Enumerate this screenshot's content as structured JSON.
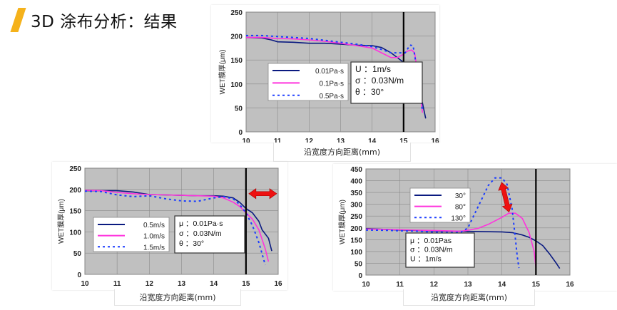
{
  "slide": {
    "title": "3D 涂布分析：结果",
    "accent_color": "#f5b21b"
  },
  "chart_data": [
    {
      "id": "viscosity",
      "type": "line",
      "title": "",
      "xlabel": "沿宽度方向距离(mm)",
      "ylabel": "WET膜厚(μm)",
      "xlim": [
        10,
        16
      ],
      "ylim": [
        0,
        250
      ],
      "xticks": [
        10,
        11,
        12,
        13,
        14,
        15,
        16
      ],
      "yticks": [
        0,
        50,
        100,
        150,
        200,
        250
      ],
      "grid": true,
      "plot_bg": "#c0c0c0",
      "vline_x": 15,
      "legend": {
        "position": "inside-left",
        "entries": [
          "0.01Pa·s",
          "0.1Pa·s",
          "0.5Pa·s"
        ]
      },
      "annotation_box": [
        "U ：1m/s",
        "σ ：0.03N/m",
        "θ ：30°"
      ],
      "series": [
        {
          "name": "0.01Pa·s",
          "color": "#0a1a80",
          "style": "solid",
          "x": [
            10,
            10.5,
            10.8,
            11,
            11.5,
            12,
            12.5,
            13,
            13.5,
            14,
            14.3,
            14.6,
            14.8,
            15,
            15.2,
            15.4,
            15.6,
            15.7
          ],
          "y": [
            197,
            196,
            192,
            188,
            187,
            185,
            185,
            183,
            181,
            180,
            176,
            165,
            155,
            145,
            128,
            100,
            60,
            28
          ]
        },
        {
          "name": "0.1Pa·s",
          "color": "#ff33dd",
          "style": "solid",
          "x": [
            10,
            10.5,
            11,
            11.5,
            12,
            12.5,
            13,
            13.5,
            14,
            14.3,
            14.6,
            14.8,
            15,
            15.1,
            15.25,
            15.35,
            15.45,
            15.6
          ],
          "y": [
            197,
            197,
            195,
            194,
            192,
            189,
            185,
            180,
            175,
            165,
            155,
            155,
            162,
            168,
            171,
            165,
            120,
            40
          ]
        },
        {
          "name": "0.5Pa·s",
          "color": "#1a3cff",
          "style": "dotted",
          "x": [
            10,
            10.5,
            11,
            11.5,
            12,
            12.5,
            13,
            13.5,
            14,
            14.3,
            14.6,
            14.9,
            15.05,
            15.2,
            15.3,
            15.4,
            15.5,
            15.6
          ],
          "y": [
            201,
            201,
            199,
            197,
            195,
            191,
            187,
            183,
            178,
            172,
            165,
            165,
            165,
            181,
            180,
            140,
            88,
            45
          ]
        }
      ]
    },
    {
      "id": "speed",
      "type": "line",
      "title": "",
      "xlabel": "沿宽度方向距离(mm)",
      "ylabel": "WET膜厚(μm)",
      "xlim": [
        10,
        16
      ],
      "ylim": [
        0,
        250
      ],
      "xticks": [
        10,
        11,
        12,
        13,
        14,
        15,
        16
      ],
      "yticks": [
        0,
        50,
        100,
        150,
        200,
        250
      ],
      "grid": true,
      "plot_bg": "#c0c0c0",
      "vline_x": 15,
      "arrow": {
        "type": "double-horizontal",
        "x_from": 15,
        "x_to": 16,
        "y": 190,
        "color": "#ee1111"
      },
      "legend": {
        "position": "inside-left",
        "entries": [
          "0.5m/s",
          "1.0m/s",
          "1.5m/s"
        ]
      },
      "annotation_box": [
        "μ ：0.01Pa·s",
        "σ ：0.03N/m",
        "θ ：30°"
      ],
      "series": [
        {
          "name": "0.5m/s",
          "color": "#0a1a80",
          "style": "solid",
          "x": [
            10,
            10.5,
            11,
            11.5,
            12,
            12.5,
            13,
            13.5,
            14,
            14.3,
            14.6,
            14.8,
            15,
            15.2,
            15.4,
            15.5,
            15.7,
            15.8
          ],
          "y": [
            197,
            197,
            197,
            194,
            188,
            187,
            186,
            185,
            185,
            184,
            180,
            170,
            155,
            145,
            125,
            105,
            85,
            55
          ]
        },
        {
          "name": "1.0m/s",
          "color": "#ff33dd",
          "style": "solid",
          "x": [
            10,
            10.5,
            11,
            11.5,
            12,
            12.5,
            13,
            13.5,
            14,
            14.3,
            14.6,
            14.8,
            15,
            15.2,
            15.4,
            15.6,
            15.7
          ],
          "y": [
            198,
            197,
            193,
            190,
            188,
            187,
            186,
            185,
            184,
            180,
            170,
            160,
            145,
            130,
            105,
            60,
            30
          ]
        },
        {
          "name": "1.5m/s",
          "color": "#1a3cff",
          "style": "dotted",
          "x": [
            10,
            10.5,
            11,
            11.5,
            12,
            12.5,
            13,
            13.5,
            14,
            14.3,
            14.6,
            14.8,
            15,
            15.2,
            15.4,
            15.6
          ],
          "y": [
            196,
            195,
            187,
            183,
            185,
            178,
            173,
            172,
            180,
            183,
            178,
            165,
            145,
            115,
            75,
            22
          ]
        }
      ]
    },
    {
      "id": "contact-angle",
      "type": "line",
      "title": "",
      "xlabel": "沿宽度方向距离(mm)",
      "ylabel": "WET膜厚(μm)",
      "xlim": [
        10,
        16
      ],
      "ylim": [
        0,
        450
      ],
      "xticks": [
        10,
        11,
        12,
        13,
        14,
        15,
        16
      ],
      "yticks": [
        0,
        50,
        100,
        150,
        200,
        250,
        300,
        350,
        400,
        450
      ],
      "grid": true,
      "plot_bg": "#c0c0c0",
      "vline_x": 15,
      "arrow": {
        "type": "double-vertical",
        "x": 14.1,
        "y_from": 395,
        "y_to": 265,
        "color": "#ee1111"
      },
      "legend": {
        "position": "inside-top-left",
        "entries": [
          "30°",
          "80°",
          "130°"
        ]
      },
      "annotation_box": [
        "μ ：0.01Pas",
        "σ ：0.03N/m",
        "U ：1m/s"
      ],
      "series": [
        {
          "name": "30°",
          "color": "#0a1a80",
          "style": "solid",
          "x": [
            10,
            10.5,
            11,
            11.5,
            12,
            12.5,
            13,
            13.5,
            14,
            14.3,
            14.6,
            14.8,
            15,
            15.2,
            15.4,
            15.6,
            15.7
          ],
          "y": [
            197,
            194,
            191,
            189,
            187,
            186,
            185,
            184,
            183,
            180,
            170,
            160,
            145,
            125,
            90,
            50,
            28
          ]
        },
        {
          "name": "80°",
          "color": "#ff33dd",
          "style": "solid",
          "x": [
            10,
            10.5,
            11,
            11.5,
            12,
            12.5,
            12.8,
            13,
            13.3,
            13.6,
            14,
            14.2,
            14.4,
            14.6,
            14.8,
            14.95,
            15
          ],
          "y": [
            195,
            194,
            192,
            190,
            189,
            187,
            186,
            190,
            198,
            215,
            245,
            262,
            262,
            240,
            180,
            100,
            30
          ]
        },
        {
          "name": "130°",
          "color": "#1a3cff",
          "style": "dotted",
          "x": [
            10,
            10.5,
            11,
            11.5,
            12,
            12.5,
            12.8,
            13,
            13.2,
            13.4,
            13.6,
            13.8,
            14,
            14.15,
            14.3,
            14.4,
            14.45,
            14.5
          ],
          "y": [
            191,
            190,
            188,
            186,
            182,
            180,
            182,
            200,
            260,
            320,
            380,
            412,
            412,
            385,
            280,
            150,
            80,
            30
          ]
        }
      ]
    }
  ]
}
